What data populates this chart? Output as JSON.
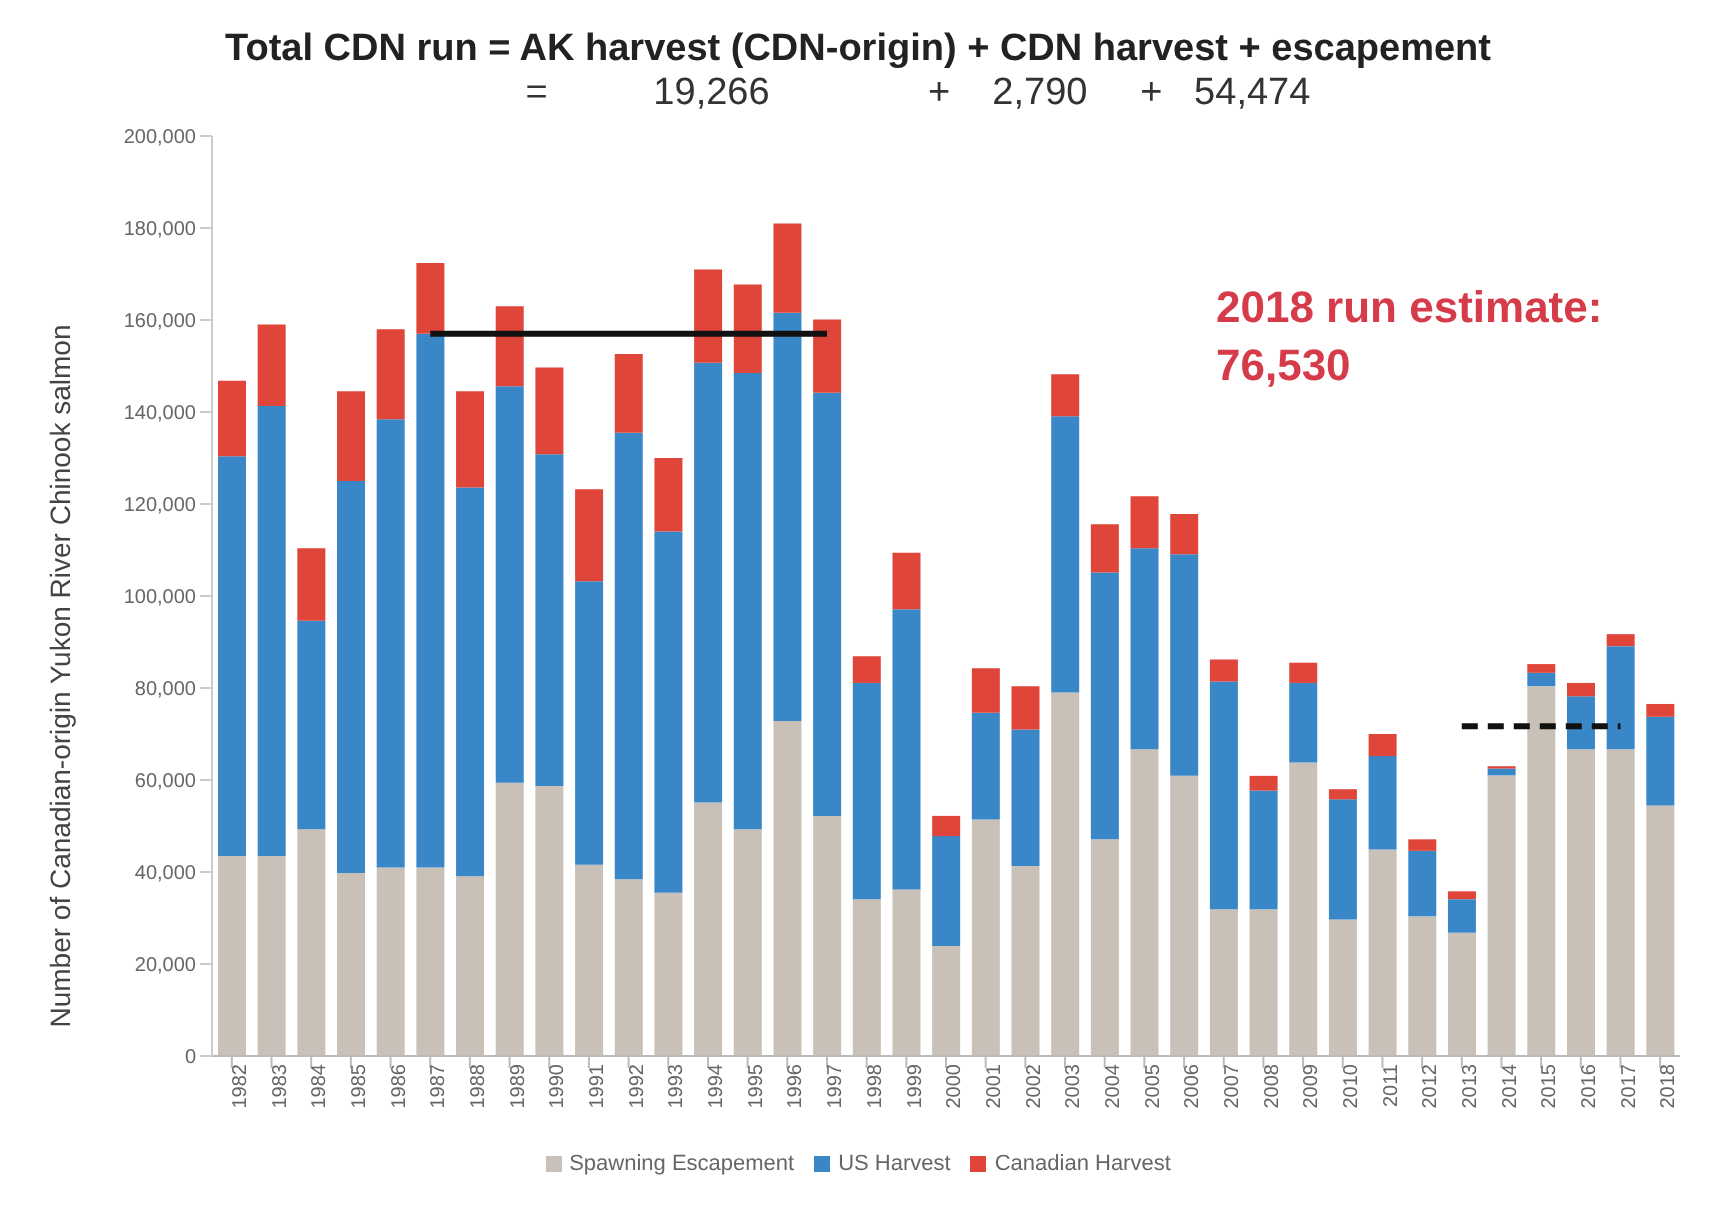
{
  "chart_data": {
    "type": "bar",
    "title": "Total CDN run = AK harvest (CDN-origin)  + CDN harvest + escapement",
    "subtitle": "=          19,266               +    2,790     +   54,474",
    "ylabel": "Number of  Canadian-origin Yukon River Chinook salmon",
    "annotations": [
      "2018 run estimate: 76,530"
    ],
    "categories": [
      "1982",
      "1983",
      "1984",
      "1985",
      "1986",
      "1987",
      "1988",
      "1989",
      "1990",
      "1991",
      "1992",
      "1993",
      "1994",
      "1995",
      "1996",
      "1997",
      "1998",
      "1999",
      "2000",
      "2001",
      "2002",
      "2003",
      "2004",
      "2005",
      "2006",
      "2007",
      "2008",
      "2009",
      "2010",
      "2011",
      "2012",
      "2013",
      "2014",
      "2015",
      "2016",
      "2017",
      "2018"
    ],
    "stacked": true,
    "series": [
      {
        "name": "Spawning Escapement",
        "color": "#c9c0b7",
        "values": [
          43500,
          43500,
          49300,
          39800,
          41000,
          41000,
          39100,
          59400,
          58700,
          41600,
          38400,
          35500,
          55100,
          49300,
          72800,
          52200,
          34100,
          36200,
          23900,
          51400,
          41300,
          79000,
          47100,
          66700,
          60900,
          31900,
          31900,
          63800,
          29700,
          44900,
          30400,
          26800,
          61000,
          80400,
          66700,
          66700,
          54474
        ]
      },
      {
        "name": "US Harvest",
        "color": "#3a87c8",
        "values": [
          86900,
          97800,
          45300,
          85200,
          97400,
          116000,
          84500,
          86200,
          72100,
          61600,
          97100,
          78500,
          95600,
          99200,
          88800,
          92000,
          47000,
          60900,
          23900,
          23200,
          29700,
          60100,
          58000,
          43700,
          48200,
          49500,
          25800,
          17300,
          26100,
          20300,
          14200,
          7300,
          1500,
          2900,
          11500,
          22400,
          19266
        ]
      },
      {
        "name": "Canadian Harvest",
        "color": "#e0453a",
        "values": [
          16400,
          17700,
          15800,
          19500,
          19600,
          15400,
          20900,
          17400,
          18900,
          20000,
          17100,
          16000,
          20300,
          19200,
          19400,
          15900,
          5800,
          12300,
          4400,
          9700,
          9400,
          9100,
          10500,
          11300,
          8700,
          4800,
          3200,
          4400,
          2200,
          4800,
          2500,
          1700,
          500,
          1900,
          2900,
          2600,
          2790
        ]
      },
      {
        "type": "line",
        "color": "#111111",
        "line_style": "solid",
        "values": [
          null,
          null,
          null,
          null,
          null,
          157000,
          157000,
          157000,
          157000,
          157000,
          157000,
          157000,
          157000,
          157000,
          157000,
          157000,
          null,
          null,
          null,
          null,
          null,
          null,
          null,
          null,
          null,
          null,
          null,
          null,
          null,
          null,
          null,
          null,
          null,
          null,
          null,
          null,
          null
        ]
      },
      {
        "type": "line",
        "color": "#111111",
        "line_style": "dashed",
        "values": [
          null,
          null,
          null,
          null,
          null,
          null,
          null,
          null,
          null,
          null,
          null,
          null,
          null,
          null,
          null,
          null,
          null,
          null,
          null,
          null,
          null,
          null,
          null,
          null,
          null,
          null,
          null,
          null,
          null,
          null,
          null,
          71700,
          71700,
          71700,
          71700,
          71700,
          null
        ]
      }
    ],
    "ylim": [
      0,
      200000
    ],
    "yticks": [
      {
        "value": 0,
        "label": "0"
      },
      {
        "value": 20000,
        "label": "20,000"
      },
      {
        "value": 40000,
        "label": "40,000"
      },
      {
        "value": 60000,
        "label": "60,000"
      },
      {
        "value": 80000,
        "label": "80,000"
      },
      {
        "value": 100000,
        "label": "100,000"
      },
      {
        "value": 120000,
        "label": "120,000"
      },
      {
        "value": 140000,
        "label": "140,000"
      },
      {
        "value": 160000,
        "label": "160,000"
      },
      {
        "value": 180000,
        "label": "180,000"
      },
      {
        "value": 200000,
        "label": "200,000"
      }
    ],
    "grid": false,
    "legend": "bottom"
  }
}
